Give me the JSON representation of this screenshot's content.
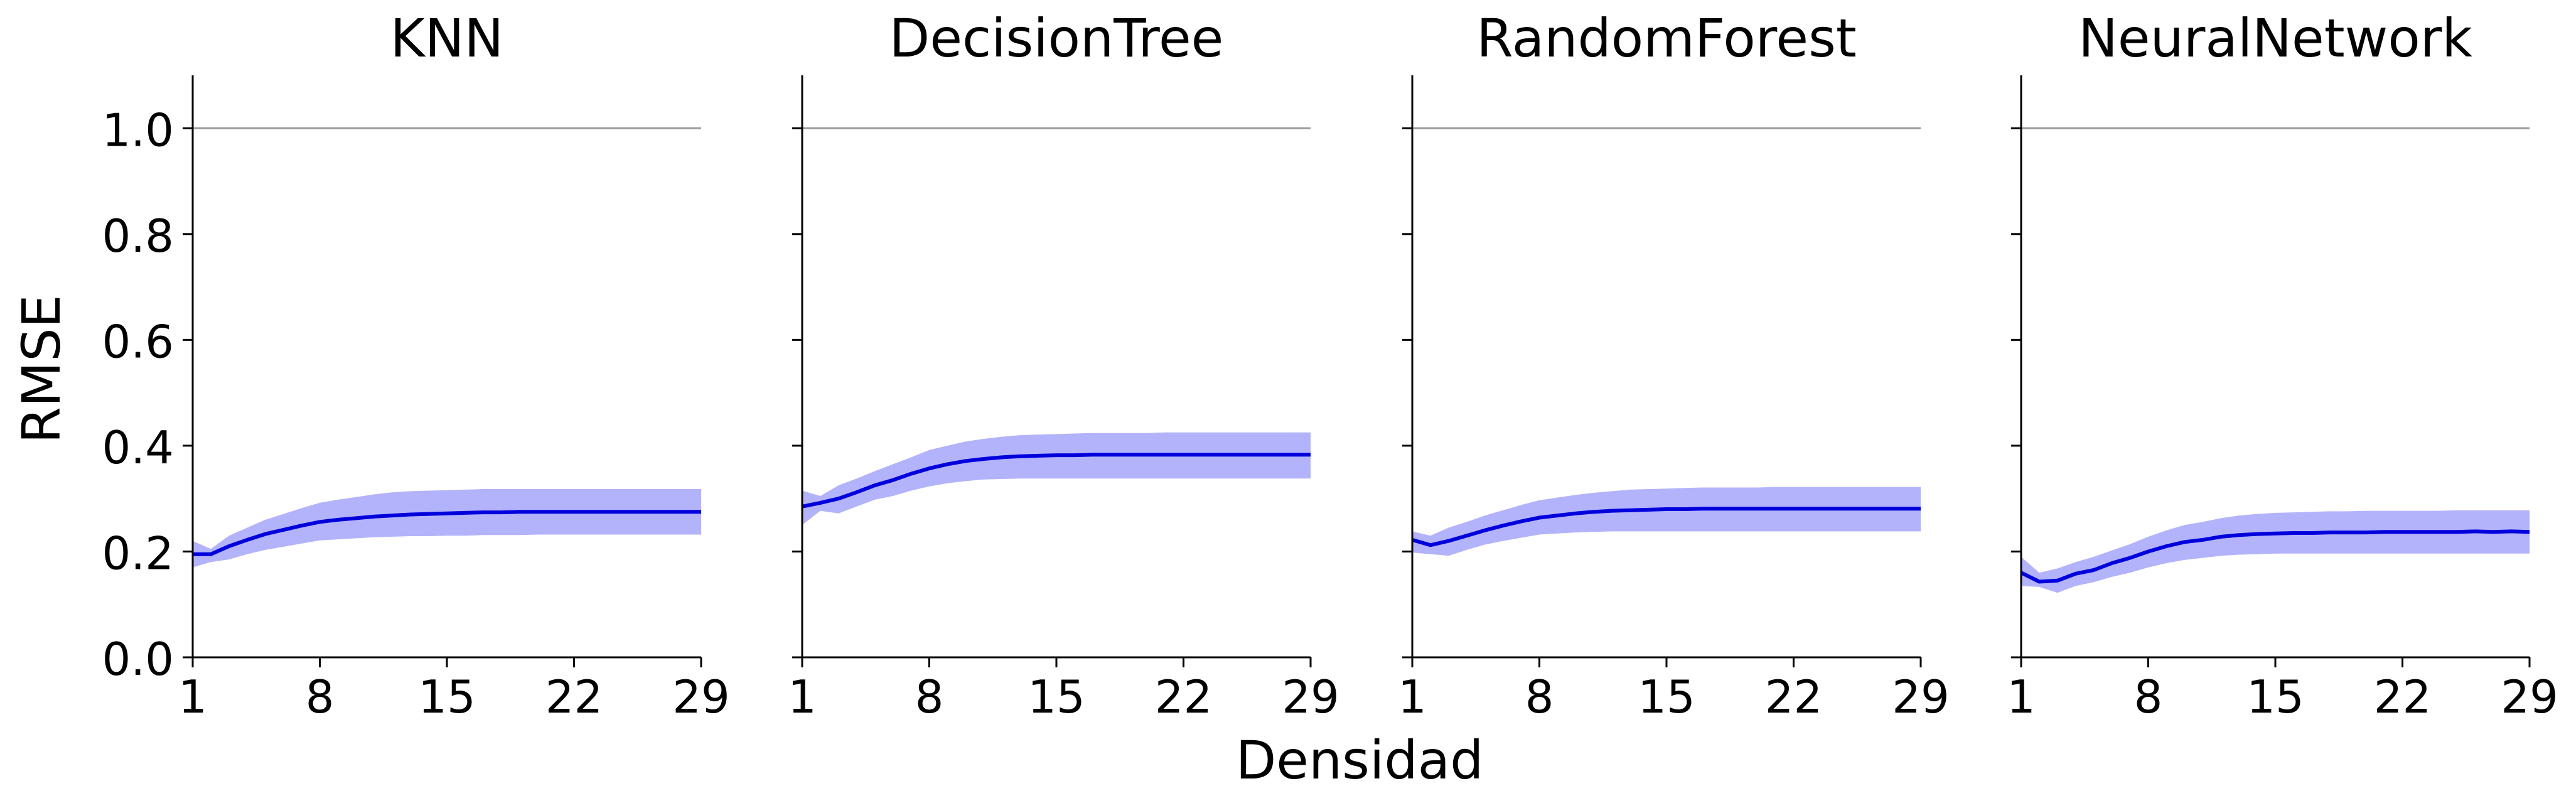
{
  "figure": {
    "xlabel": "Densidad",
    "ylabel": "RMSE"
  },
  "colors": {
    "line": "#0000dd",
    "band": "#b3b3fb",
    "reference_line": "#999999",
    "axis": "#000000"
  },
  "chart_data": [
    {
      "type": "line",
      "title": "KNN",
      "x": [
        1,
        2,
        3,
        4,
        5,
        6,
        7,
        8,
        9,
        10,
        11,
        12,
        13,
        14,
        15,
        16,
        17,
        18,
        19,
        20,
        21,
        22,
        23,
        24,
        25,
        26,
        27,
        28,
        29
      ],
      "xticks": [
        1,
        8,
        15,
        22,
        29
      ],
      "xlim": [
        1,
        29
      ],
      "ylim": [
        0,
        1.1
      ],
      "yticks": [
        "0.0",
        "0.2",
        "0.4",
        "0.6",
        "0.8",
        "1.0"
      ],
      "reference_y": 1.0,
      "series": [
        {
          "mean": [
            0.195,
            0.195,
            0.21,
            0.222,
            0.233,
            0.241,
            0.249,
            0.256,
            0.26,
            0.263,
            0.266,
            0.268,
            0.27,
            0.271,
            0.272,
            0.273,
            0.274,
            0.274,
            0.275,
            0.275,
            0.275,
            0.275,
            0.275,
            0.275,
            0.275,
            0.275,
            0.275,
            0.275,
            0.275
          ],
          "lower": [
            0.17,
            0.18,
            0.185,
            0.195,
            0.203,
            0.209,
            0.215,
            0.221,
            0.223,
            0.225,
            0.227,
            0.228,
            0.229,
            0.229,
            0.23,
            0.23,
            0.231,
            0.231,
            0.231,
            0.232,
            0.232,
            0.232,
            0.232,
            0.232,
            0.232,
            0.232,
            0.232,
            0.232,
            0.232
          ],
          "upper": [
            0.22,
            0.205,
            0.23,
            0.245,
            0.26,
            0.271,
            0.282,
            0.292,
            0.298,
            0.303,
            0.308,
            0.312,
            0.314,
            0.315,
            0.316,
            0.317,
            0.318,
            0.318,
            0.318,
            0.318,
            0.318,
            0.318,
            0.318,
            0.318,
            0.318,
            0.318,
            0.318,
            0.318,
            0.318
          ]
        }
      ]
    },
    {
      "type": "line",
      "title": "DecisionTree",
      "x": [
        1,
        2,
        3,
        4,
        5,
        6,
        7,
        8,
        9,
        10,
        11,
        12,
        13,
        14,
        15,
        16,
        17,
        18,
        19,
        20,
        21,
        22,
        23,
        24,
        25,
        26,
        27,
        28,
        29
      ],
      "xticks": [
        1,
        8,
        15,
        22,
        29
      ],
      "xlim": [
        1,
        29
      ],
      "ylim": [
        0,
        1.1
      ],
      "yticks": [
        "0.0",
        "0.2",
        "0.4",
        "0.6",
        "0.8",
        "1.0"
      ],
      "reference_y": 1.0,
      "series": [
        {
          "mean": [
            0.285,
            0.292,
            0.3,
            0.312,
            0.325,
            0.335,
            0.347,
            0.357,
            0.365,
            0.371,
            0.375,
            0.378,
            0.38,
            0.381,
            0.382,
            0.382,
            0.383,
            0.383,
            0.383,
            0.383,
            0.383,
            0.383,
            0.383,
            0.383,
            0.383,
            0.383,
            0.383,
            0.383,
            0.383
          ],
          "lower": [
            0.25,
            0.277,
            0.272,
            0.285,
            0.298,
            0.305,
            0.315,
            0.323,
            0.329,
            0.333,
            0.336,
            0.337,
            0.338,
            0.338,
            0.338,
            0.338,
            0.338,
            0.338,
            0.338,
            0.338,
            0.338,
            0.338,
            0.338,
            0.338,
            0.338,
            0.338,
            0.338,
            0.338,
            0.338
          ],
          "upper": [
            0.315,
            0.305,
            0.325,
            0.338,
            0.352,
            0.365,
            0.378,
            0.392,
            0.4,
            0.408,
            0.413,
            0.417,
            0.42,
            0.421,
            0.422,
            0.423,
            0.424,
            0.424,
            0.424,
            0.424,
            0.425,
            0.425,
            0.425,
            0.425,
            0.425,
            0.425,
            0.425,
            0.425,
            0.425
          ]
        }
      ]
    },
    {
      "type": "line",
      "title": "RandomForest",
      "x": [
        1,
        2,
        3,
        4,
        5,
        6,
        7,
        8,
        9,
        10,
        11,
        12,
        13,
        14,
        15,
        16,
        17,
        18,
        19,
        20,
        21,
        22,
        23,
        24,
        25,
        26,
        27,
        28,
        29
      ],
      "xticks": [
        1,
        8,
        15,
        22,
        29
      ],
      "xlim": [
        1,
        29
      ],
      "ylim": [
        0,
        1.1
      ],
      "yticks": [
        "0.0",
        "0.2",
        "0.4",
        "0.6",
        "0.8",
        "1.0"
      ],
      "reference_y": 1.0,
      "series": [
        {
          "mean": [
            0.222,
            0.212,
            0.22,
            0.23,
            0.24,
            0.249,
            0.257,
            0.264,
            0.268,
            0.272,
            0.275,
            0.277,
            0.278,
            0.279,
            0.28,
            0.28,
            0.281,
            0.281,
            0.281,
            0.281,
            0.281,
            0.281,
            0.281,
            0.281,
            0.281,
            0.281,
            0.281,
            0.281,
            0.281
          ],
          "lower": [
            0.198,
            0.195,
            0.192,
            0.203,
            0.213,
            0.22,
            0.226,
            0.232,
            0.234,
            0.236,
            0.237,
            0.238,
            0.238,
            0.238,
            0.238,
            0.238,
            0.238,
            0.238,
            0.238,
            0.238,
            0.238,
            0.238,
            0.238,
            0.238,
            0.238,
            0.238,
            0.238,
            0.238,
            0.238
          ],
          "upper": [
            0.238,
            0.23,
            0.245,
            0.256,
            0.268,
            0.278,
            0.288,
            0.297,
            0.302,
            0.307,
            0.311,
            0.314,
            0.317,
            0.318,
            0.319,
            0.32,
            0.321,
            0.321,
            0.321,
            0.321,
            0.322,
            0.322,
            0.322,
            0.322,
            0.322,
            0.322,
            0.322,
            0.322,
            0.322
          ]
        }
      ]
    },
    {
      "type": "line",
      "title": "NeuralNetwork",
      "x": [
        1,
        2,
        3,
        4,
        5,
        6,
        7,
        8,
        9,
        10,
        11,
        12,
        13,
        14,
        15,
        16,
        17,
        18,
        19,
        20,
        21,
        22,
        23,
        24,
        25,
        26,
        27,
        28,
        29
      ],
      "xticks": [
        1,
        8,
        15,
        22,
        29
      ],
      "xlim": [
        1,
        29
      ],
      "ylim": [
        0,
        1.1
      ],
      "yticks": [
        "0.0",
        "0.2",
        "0.4",
        "0.6",
        "0.8",
        "1.0"
      ],
      "reference_y": 1.0,
      "series": [
        {
          "mean": [
            0.16,
            0.143,
            0.145,
            0.158,
            0.165,
            0.178,
            0.188,
            0.2,
            0.21,
            0.218,
            0.222,
            0.228,
            0.231,
            0.233,
            0.234,
            0.235,
            0.235,
            0.236,
            0.236,
            0.236,
            0.237,
            0.237,
            0.237,
            0.237,
            0.237,
            0.238,
            0.237,
            0.238,
            0.237
          ],
          "lower": [
            0.135,
            0.133,
            0.122,
            0.135,
            0.142,
            0.152,
            0.16,
            0.17,
            0.178,
            0.184,
            0.188,
            0.192,
            0.194,
            0.195,
            0.196,
            0.196,
            0.196,
            0.196,
            0.196,
            0.196,
            0.196,
            0.196,
            0.196,
            0.196,
            0.196,
            0.196,
            0.196,
            0.196,
            0.196
          ],
          "upper": [
            0.19,
            0.16,
            0.168,
            0.18,
            0.19,
            0.202,
            0.214,
            0.228,
            0.24,
            0.25,
            0.256,
            0.263,
            0.268,
            0.271,
            0.273,
            0.274,
            0.275,
            0.276,
            0.276,
            0.277,
            0.277,
            0.277,
            0.277,
            0.277,
            0.278,
            0.278,
            0.278,
            0.278,
            0.278
          ]
        }
      ]
    }
  ]
}
